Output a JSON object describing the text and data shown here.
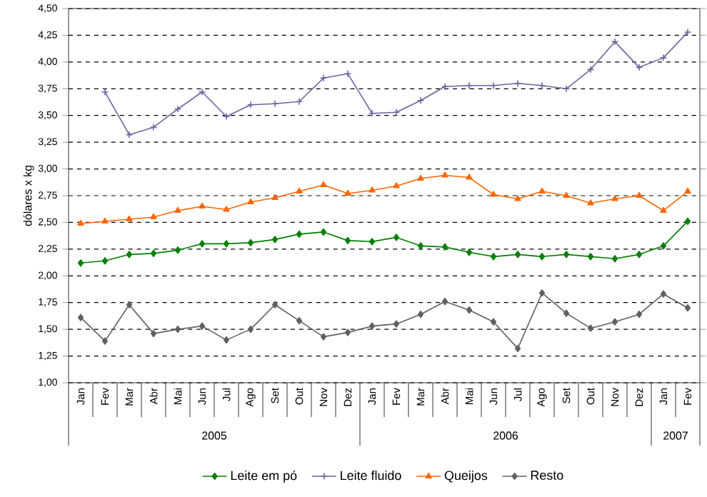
{
  "chart_data": {
    "type": "line",
    "ylabel": "dólares x kg",
    "categories": [
      "Jan",
      "Fev",
      "Mar",
      "Abr",
      "Mai",
      "Jun",
      "Jul",
      "Ago",
      "Set",
      "Out",
      "Nov",
      "Dez",
      "Jan",
      "Fev",
      "Mar",
      "Abr",
      "Mai",
      "Jun",
      "Jul",
      "Ago",
      "Set",
      "Out",
      "Nov",
      "Dez",
      "Jan",
      "Fev"
    ],
    "annotations": [
      "2005",
      "2006",
      "2007"
    ],
    "series": [
      {
        "name": "Leite em pó",
        "color": "#008000",
        "marker": "diamond",
        "values": [
          2.12,
          2.14,
          2.2,
          2.21,
          2.24,
          2.3,
          2.3,
          2.31,
          2.34,
          2.39,
          2.41,
          2.33,
          2.32,
          2.36,
          2.28,
          2.27,
          2.22,
          2.18,
          2.2,
          2.18,
          2.2,
          2.18,
          2.16,
          2.2,
          2.28,
          2.51
        ]
      },
      {
        "name": "Leite fluido",
        "color": "#6666a0",
        "marker": "cross",
        "values": [
          null,
          3.72,
          3.32,
          3.39,
          3.56,
          3.72,
          3.49,
          3.6,
          3.61,
          3.63,
          3.85,
          3.89,
          3.52,
          3.53,
          3.64,
          3.77,
          3.78,
          3.78,
          3.8,
          3.78,
          3.75,
          3.93,
          4.19,
          3.95,
          4.04,
          4.28
        ]
      },
      {
        "name": "Queijos",
        "color": "#ff6600",
        "marker": "triangle",
        "values": [
          2.49,
          2.51,
          2.53,
          2.55,
          2.61,
          2.65,
          2.62,
          2.69,
          2.73,
          2.79,
          2.85,
          2.77,
          2.8,
          2.84,
          2.91,
          2.94,
          2.92,
          2.76,
          2.72,
          2.79,
          2.75,
          2.68,
          2.72,
          2.75,
          2.61,
          2.79
        ]
      },
      {
        "name": "Resto",
        "color": "#606060",
        "marker": "diamond",
        "values": [
          1.61,
          1.39,
          1.73,
          1.46,
          1.5,
          1.53,
          1.4,
          1.5,
          1.73,
          1.58,
          1.43,
          1.47,
          1.53,
          1.55,
          1.64,
          1.76,
          1.68,
          1.57,
          1.32,
          1.84,
          1.65,
          1.51,
          1.57,
          1.64,
          1.83,
          1.7
        ]
      }
    ],
    "ylim": [
      1,
      4.5
    ],
    "yticks": [
      {
        "value": 1,
        "label": "1,00"
      },
      {
        "value": 1.25,
        "label": "1,25"
      },
      {
        "value": 1.5,
        "label": "1,50"
      },
      {
        "value": 1.75,
        "label": "1,75"
      },
      {
        "value": 2,
        "label": "2,00"
      },
      {
        "value": 2.25,
        "label": "2,25"
      },
      {
        "value": 2.5,
        "label": "2,50"
      },
      {
        "value": 2.75,
        "label": "2,75"
      },
      {
        "value": 3,
        "label": "3,00"
      },
      {
        "value": 3.25,
        "label": "3,25"
      },
      {
        "value": 3.5,
        "label": "3,50"
      },
      {
        "value": 3.75,
        "label": "3,75"
      },
      {
        "value": 4,
        "label": "4,00"
      },
      {
        "value": 4.25,
        "label": "4,25"
      },
      {
        "value": 4.5,
        "label": "4,50"
      }
    ],
    "grid": "y",
    "legend": "bottom",
    "line_style": "solid"
  }
}
